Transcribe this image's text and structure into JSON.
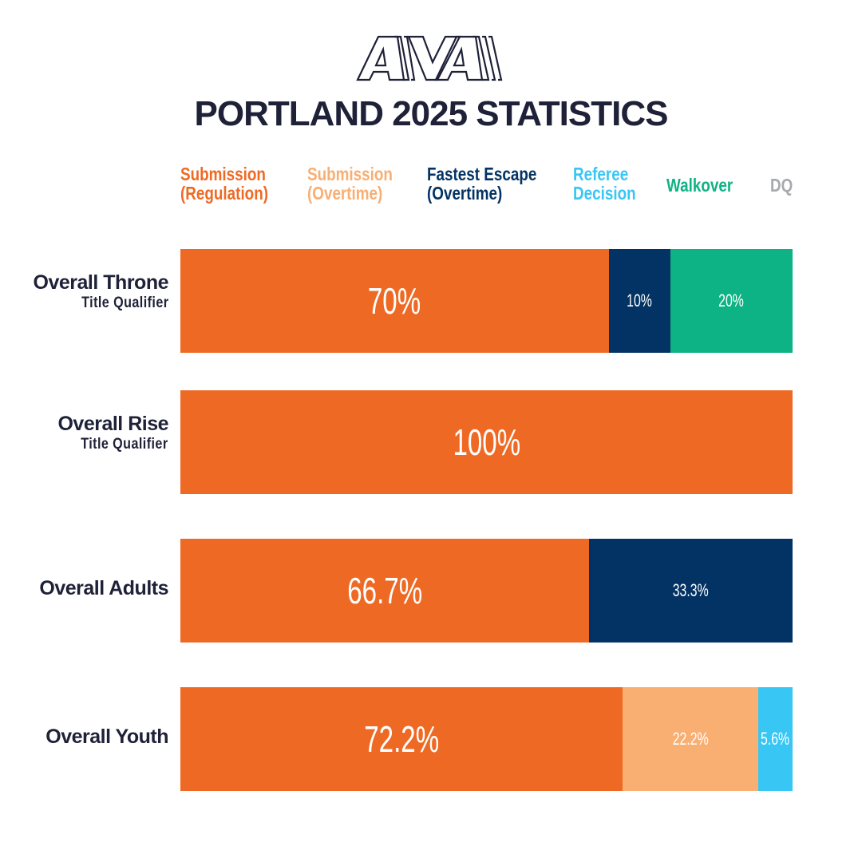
{
  "logo_text": "AVA",
  "title": "PORTLAND 2025 STATISTICS",
  "chart_data": {
    "type": "bar",
    "stacked": true,
    "orientation": "horizontal",
    "title": "PORTLAND 2025 STATISTICS",
    "xlim": [
      0,
      100
    ],
    "legend": [
      {
        "name": "Submission\n(Regulation)",
        "color": "#ee6a24"
      },
      {
        "name": "Submission\n(Overtime)",
        "color": "#f9ae72"
      },
      {
        "name": "Fastest Escape\n(Overtime)",
        "color": "#033364"
      },
      {
        "name": "Referee\nDecision",
        "color": "#38c6f4"
      },
      {
        "name": "Walkover",
        "color": "#0db384"
      },
      {
        "name": "DQ",
        "color": "#a7a9ac"
      }
    ],
    "categories": [
      {
        "label": "Overall Throne",
        "sublabel": "Title Qualifier"
      },
      {
        "label": "Overall Rise",
        "sublabel": "Title Qualifier"
      },
      {
        "label": "Overall Adults",
        "sublabel": ""
      },
      {
        "label": "Overall Youth",
        "sublabel": ""
      }
    ],
    "series": [
      {
        "name": "Submission (Regulation)",
        "values": [
          70,
          100,
          66.7,
          72.2
        ],
        "labels": [
          "70%",
          "100%",
          "66.7%",
          "72.2%"
        ]
      },
      {
        "name": "Submission (Overtime)",
        "values": [
          0,
          0,
          0,
          22.2
        ],
        "labels": [
          "",
          "",
          "",
          "22.2%"
        ]
      },
      {
        "name": "Fastest Escape (Overtime)",
        "values": [
          10,
          0,
          33.3,
          0
        ],
        "labels": [
          "10%",
          "",
          "33.3%",
          ""
        ]
      },
      {
        "name": "Referee Decision",
        "values": [
          0,
          0,
          0,
          5.6
        ],
        "labels": [
          "",
          "",
          "",
          "5.6%"
        ]
      },
      {
        "name": "Walkover",
        "values": [
          20,
          0,
          0,
          0
        ],
        "labels": [
          "20%",
          "",
          "",
          ""
        ]
      },
      {
        "name": "DQ",
        "values": [
          0,
          0,
          0,
          0
        ],
        "labels": [
          "",
          "",
          "",
          ""
        ]
      }
    ]
  }
}
